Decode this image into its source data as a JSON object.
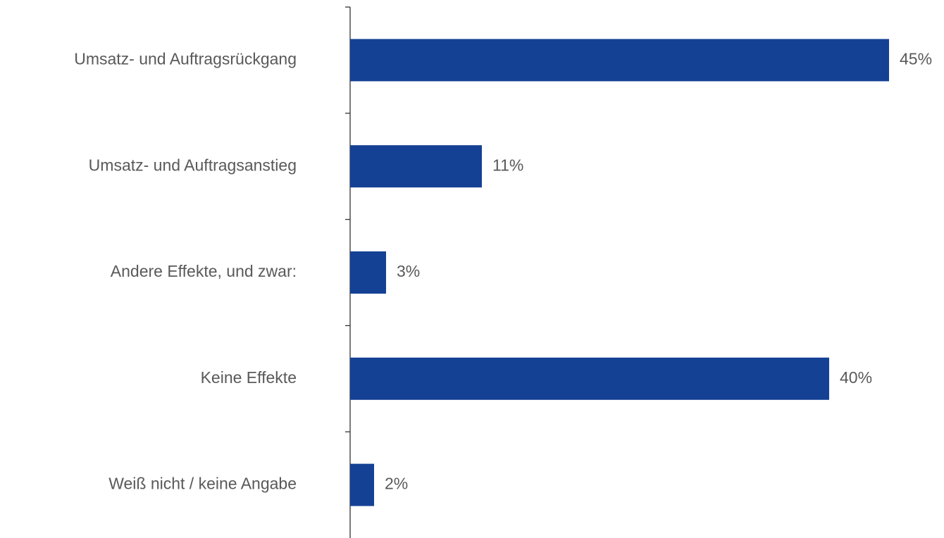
{
  "chart_data": {
    "type": "barh",
    "categories": [
      "Umsatz- und Auftragsrückgang",
      "Umsatz- und Auftragsanstieg",
      "Andere Effekte, und zwar:",
      "Keine Effekte",
      "Weiß nicht / keine Angabe"
    ],
    "values": [
      45,
      11,
      3,
      40,
      2
    ],
    "value_labels": [
      "45%",
      "11%",
      "3%",
      "40%",
      "2%"
    ],
    "color": "#154194",
    "xlim": [
      0,
      45
    ]
  }
}
